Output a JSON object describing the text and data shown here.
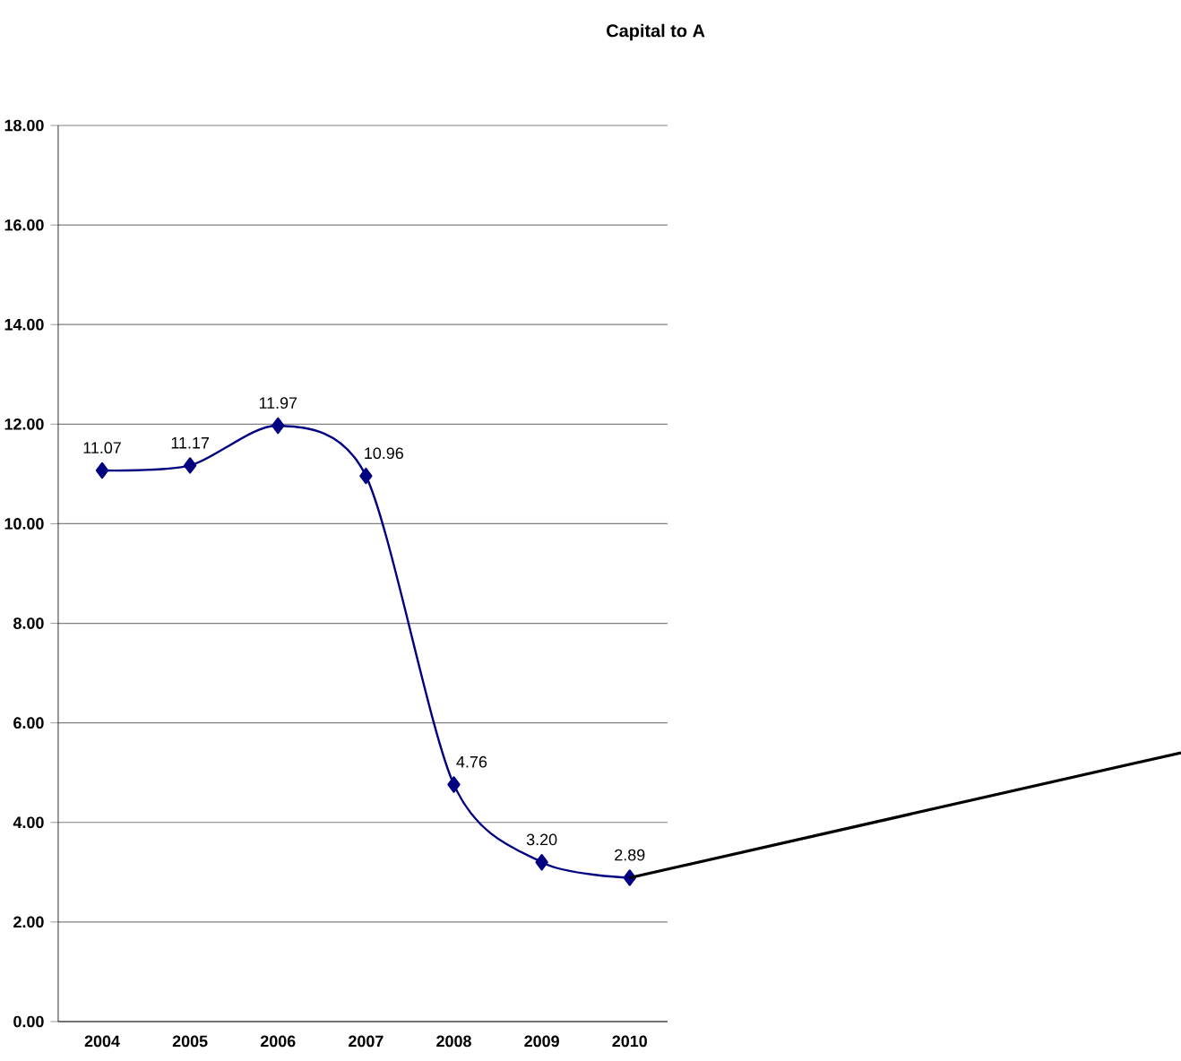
{
  "chart_data": {
    "type": "line",
    "title": "Capital to A",
    "categories": [
      "2004",
      "2005",
      "2006",
      "2007",
      "2008",
      "2009",
      "2010"
    ],
    "series": [
      {
        "color": "#000080",
        "values": [
          11.07,
          11.17,
          11.97,
          10.96,
          4.76,
          3.2,
          2.89
        ],
        "value_labels": [
          "11.07",
          "11.17",
          "11.97",
          "10.96",
          "4.76",
          "3.20",
          "2.89"
        ]
      }
    ],
    "ylim": [
      0,
      18
    ],
    "yticks": [
      {
        "value": 0,
        "label": "0.00"
      },
      {
        "value": 2,
        "label": "2.00"
      },
      {
        "value": 4,
        "label": "4.00"
      },
      {
        "value": 6,
        "label": "6.00"
      },
      {
        "value": 8,
        "label": "8.00"
      },
      {
        "value": 10,
        "label": "10.00"
      },
      {
        "value": 12,
        "label": "12.00"
      },
      {
        "value": 14,
        "label": "14.00"
      },
      {
        "value": 16,
        "label": "16.00"
      },
      {
        "value": 18,
        "label": "18.00"
      }
    ],
    "grid": "y",
    "marker": "diamond",
    "line_style": "solid"
  }
}
